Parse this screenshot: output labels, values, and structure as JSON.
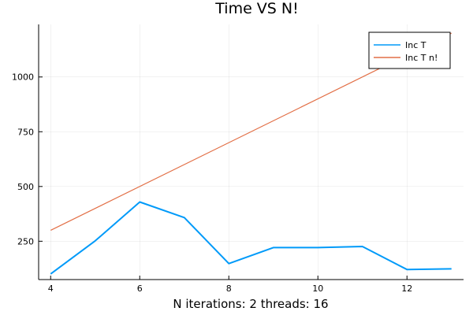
{
  "chart_data": {
    "type": "line",
    "title": "Time VS N!",
    "xlabel": "N iterations: 2 threads: 16",
    "ylabel": "",
    "xlim": [
      3.73,
      13.27
    ],
    "ylim": [
      75,
      1240
    ],
    "xticks": [
      4,
      6,
      8,
      10,
      12
    ],
    "yticks": [
      250,
      500,
      750,
      1000
    ],
    "grid": true,
    "legend_position": "top-right",
    "series": [
      {
        "name": "Inc T",
        "color": "#009af9",
        "x": [
          4,
          5,
          6,
          7,
          8,
          9,
          10,
          11,
          12,
          13
        ],
        "values": [
          101,
          252,
          429,
          358,
          148,
          221,
          221,
          226,
          121,
          124
        ]
      },
      {
        "name": "Inc T n!",
        "color": "#e26f46",
        "x": [
          4,
          13
        ],
        "values": [
          300,
          1200
        ]
      }
    ]
  }
}
